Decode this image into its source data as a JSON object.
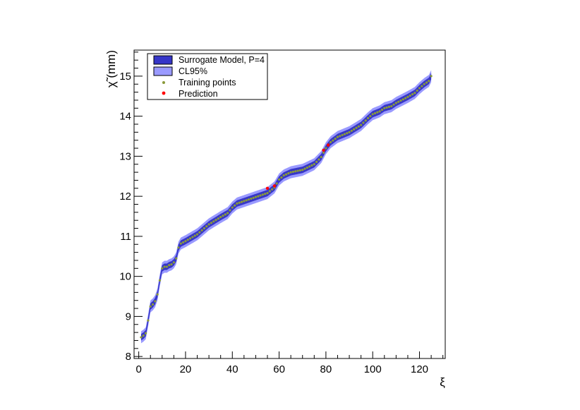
{
  "chart_data": {
    "type": "line",
    "xlabel": "ξ",
    "ylabel": "χ̃ (mm)",
    "xlim": [
      -2,
      131
    ],
    "ylim": [
      7.95,
      15.65
    ],
    "xticks": [
      0,
      20,
      40,
      60,
      80,
      100,
      120
    ],
    "yticks": [
      8,
      9,
      10,
      11,
      12,
      13,
      14,
      15
    ],
    "grid": false,
    "legend_position": "top-left",
    "legend": [
      {
        "label": "Surrogate Model, P=4",
        "kind": "band-inner"
      },
      {
        "label": "CL95%",
        "kind": "band-outer"
      },
      {
        "label": "Training points",
        "kind": "marker-training"
      },
      {
        "label": "Prediction",
        "kind": "marker-prediction"
      }
    ],
    "colors": {
      "band_inner": "#3636c8",
      "band_outer": "#9a9aff",
      "training": "#8a9a3a",
      "prediction": "#ff0000"
    },
    "band_half_width": {
      "inner": 0.08,
      "outer": 0.15
    },
    "curve_knots": [
      [
        1,
        8.48
      ],
      [
        2,
        8.52
      ],
      [
        3,
        8.58
      ],
      [
        4,
        8.9
      ],
      [
        5,
        9.25
      ],
      [
        6,
        9.3
      ],
      [
        7,
        9.38
      ],
      [
        8,
        9.55
      ],
      [
        9,
        9.9
      ],
      [
        10,
        10.2
      ],
      [
        11,
        10.24
      ],
      [
        12,
        10.24
      ],
      [
        13,
        10.28
      ],
      [
        14,
        10.3
      ],
      [
        15,
        10.35
      ],
      [
        16,
        10.45
      ],
      [
        17,
        10.72
      ],
      [
        18,
        10.82
      ],
      [
        20,
        10.88
      ],
      [
        25,
        11.05
      ],
      [
        30,
        11.3
      ],
      [
        35,
        11.48
      ],
      [
        38,
        11.58
      ],
      [
        40,
        11.72
      ],
      [
        42,
        11.82
      ],
      [
        45,
        11.88
      ],
      [
        50,
        11.98
      ],
      [
        55,
        12.08
      ],
      [
        58,
        12.22
      ],
      [
        60,
        12.42
      ],
      [
        62,
        12.52
      ],
      [
        65,
        12.6
      ],
      [
        70,
        12.66
      ],
      [
        75,
        12.8
      ],
      [
        78,
        12.98
      ],
      [
        80,
        13.2
      ],
      [
        82,
        13.35
      ],
      [
        85,
        13.48
      ],
      [
        90,
        13.6
      ],
      [
        95,
        13.78
      ],
      [
        98,
        13.95
      ],
      [
        100,
        14.05
      ],
      [
        103,
        14.12
      ],
      [
        105,
        14.2
      ],
      [
        108,
        14.25
      ],
      [
        110,
        14.33
      ],
      [
        115,
        14.48
      ],
      [
        118,
        14.58
      ],
      [
        120,
        14.7
      ],
      [
        122,
        14.8
      ],
      [
        124,
        14.88
      ],
      [
        125,
        15.0
      ]
    ],
    "training_points": {
      "x_start": 1,
      "x_end": 125,
      "step": 1
    },
    "prediction_points": [
      {
        "x": 55,
        "y": 12.2
      },
      {
        "x": 58,
        "y": 12.26
      },
      {
        "x": 79,
        "y": 13.15
      },
      {
        "x": 81,
        "y": 13.28
      }
    ]
  }
}
